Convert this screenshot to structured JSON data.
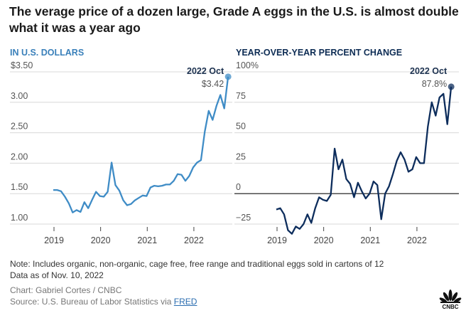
{
  "title": "The verage price of a dozen large, Grade A eggs in the U.S. is almost double what it was a year ago",
  "chart_data": [
    {
      "type": "line",
      "subtitle": "IN U.S. DOLLARS",
      "color": "#3f8cc6",
      "x_start": "2019 Jan",
      "x_end": "2022 Oct",
      "xtick_labels": [
        "2019",
        "2020",
        "2021",
        "2022"
      ],
      "ytick_values": [
        1.0,
        1.5,
        2.0,
        2.5,
        3.0,
        3.5
      ],
      "ytick_labels": [
        "1.00",
        "1.50",
        "2.00",
        "2.50",
        "3.00",
        "$3.50"
      ],
      "ylim": [
        1.0,
        3.5
      ],
      "values": [
        1.56,
        1.56,
        1.54,
        1.45,
        1.34,
        1.19,
        1.23,
        1.2,
        1.36,
        1.26,
        1.4,
        1.53,
        1.46,
        1.45,
        1.53,
        2.01,
        1.64,
        1.55,
        1.39,
        1.31,
        1.33,
        1.39,
        1.43,
        1.47,
        1.46,
        1.6,
        1.63,
        1.62,
        1.63,
        1.65,
        1.65,
        1.71,
        1.82,
        1.81,
        1.71,
        1.79,
        1.93,
        2.01,
        2.05,
        2.52,
        2.86,
        2.71,
        2.94,
        3.12,
        2.9,
        3.42
      ],
      "annotation": {
        "label": "2022 Oct",
        "value": "$3.42"
      }
    },
    {
      "type": "line",
      "subtitle": "YEAR-OVER-YEAR PERCENT CHANGE",
      "color": "#0d2d5c",
      "x_start": "2019 Jan",
      "x_end": "2022 Oct",
      "xtick_labels": [
        "2019",
        "2020",
        "2021",
        "2022"
      ],
      "ytick_values": [
        -25,
        0,
        25,
        50,
        75,
        100
      ],
      "ytick_labels": [
        "−25",
        "0",
        "25",
        "50",
        "75",
        "100%"
      ],
      "ylim": [
        -25,
        100
      ],
      "values": [
        -13,
        -12,
        -17,
        -30,
        -33,
        -27,
        -29,
        -25,
        -17,
        -24,
        -12,
        -3,
        -5,
        -6,
        -1,
        37,
        20,
        28,
        12,
        8,
        -3,
        9,
        2,
        -4,
        0,
        10,
        7,
        -21,
        0,
        6,
        16,
        27,
        34,
        28,
        18,
        20,
        30,
        25,
        25,
        55,
        75,
        64,
        79,
        82,
        57,
        87.8
      ],
      "annotation": {
        "label": "2022 Oct",
        "value": "87.8%"
      }
    }
  ],
  "footer": {
    "note": "Note: Includes organic, non-organic, cage free, free range and traditional eggs sold in cartons of 12",
    "data_as_of": "Data as of Nov. 10, 2022",
    "credit": "Chart: Gabriel Cortes / CNBC",
    "source_prefix": "Source: U.S. Bureau of Labor Statistics via ",
    "source_link": "FRED",
    "logo": "CNBC"
  }
}
